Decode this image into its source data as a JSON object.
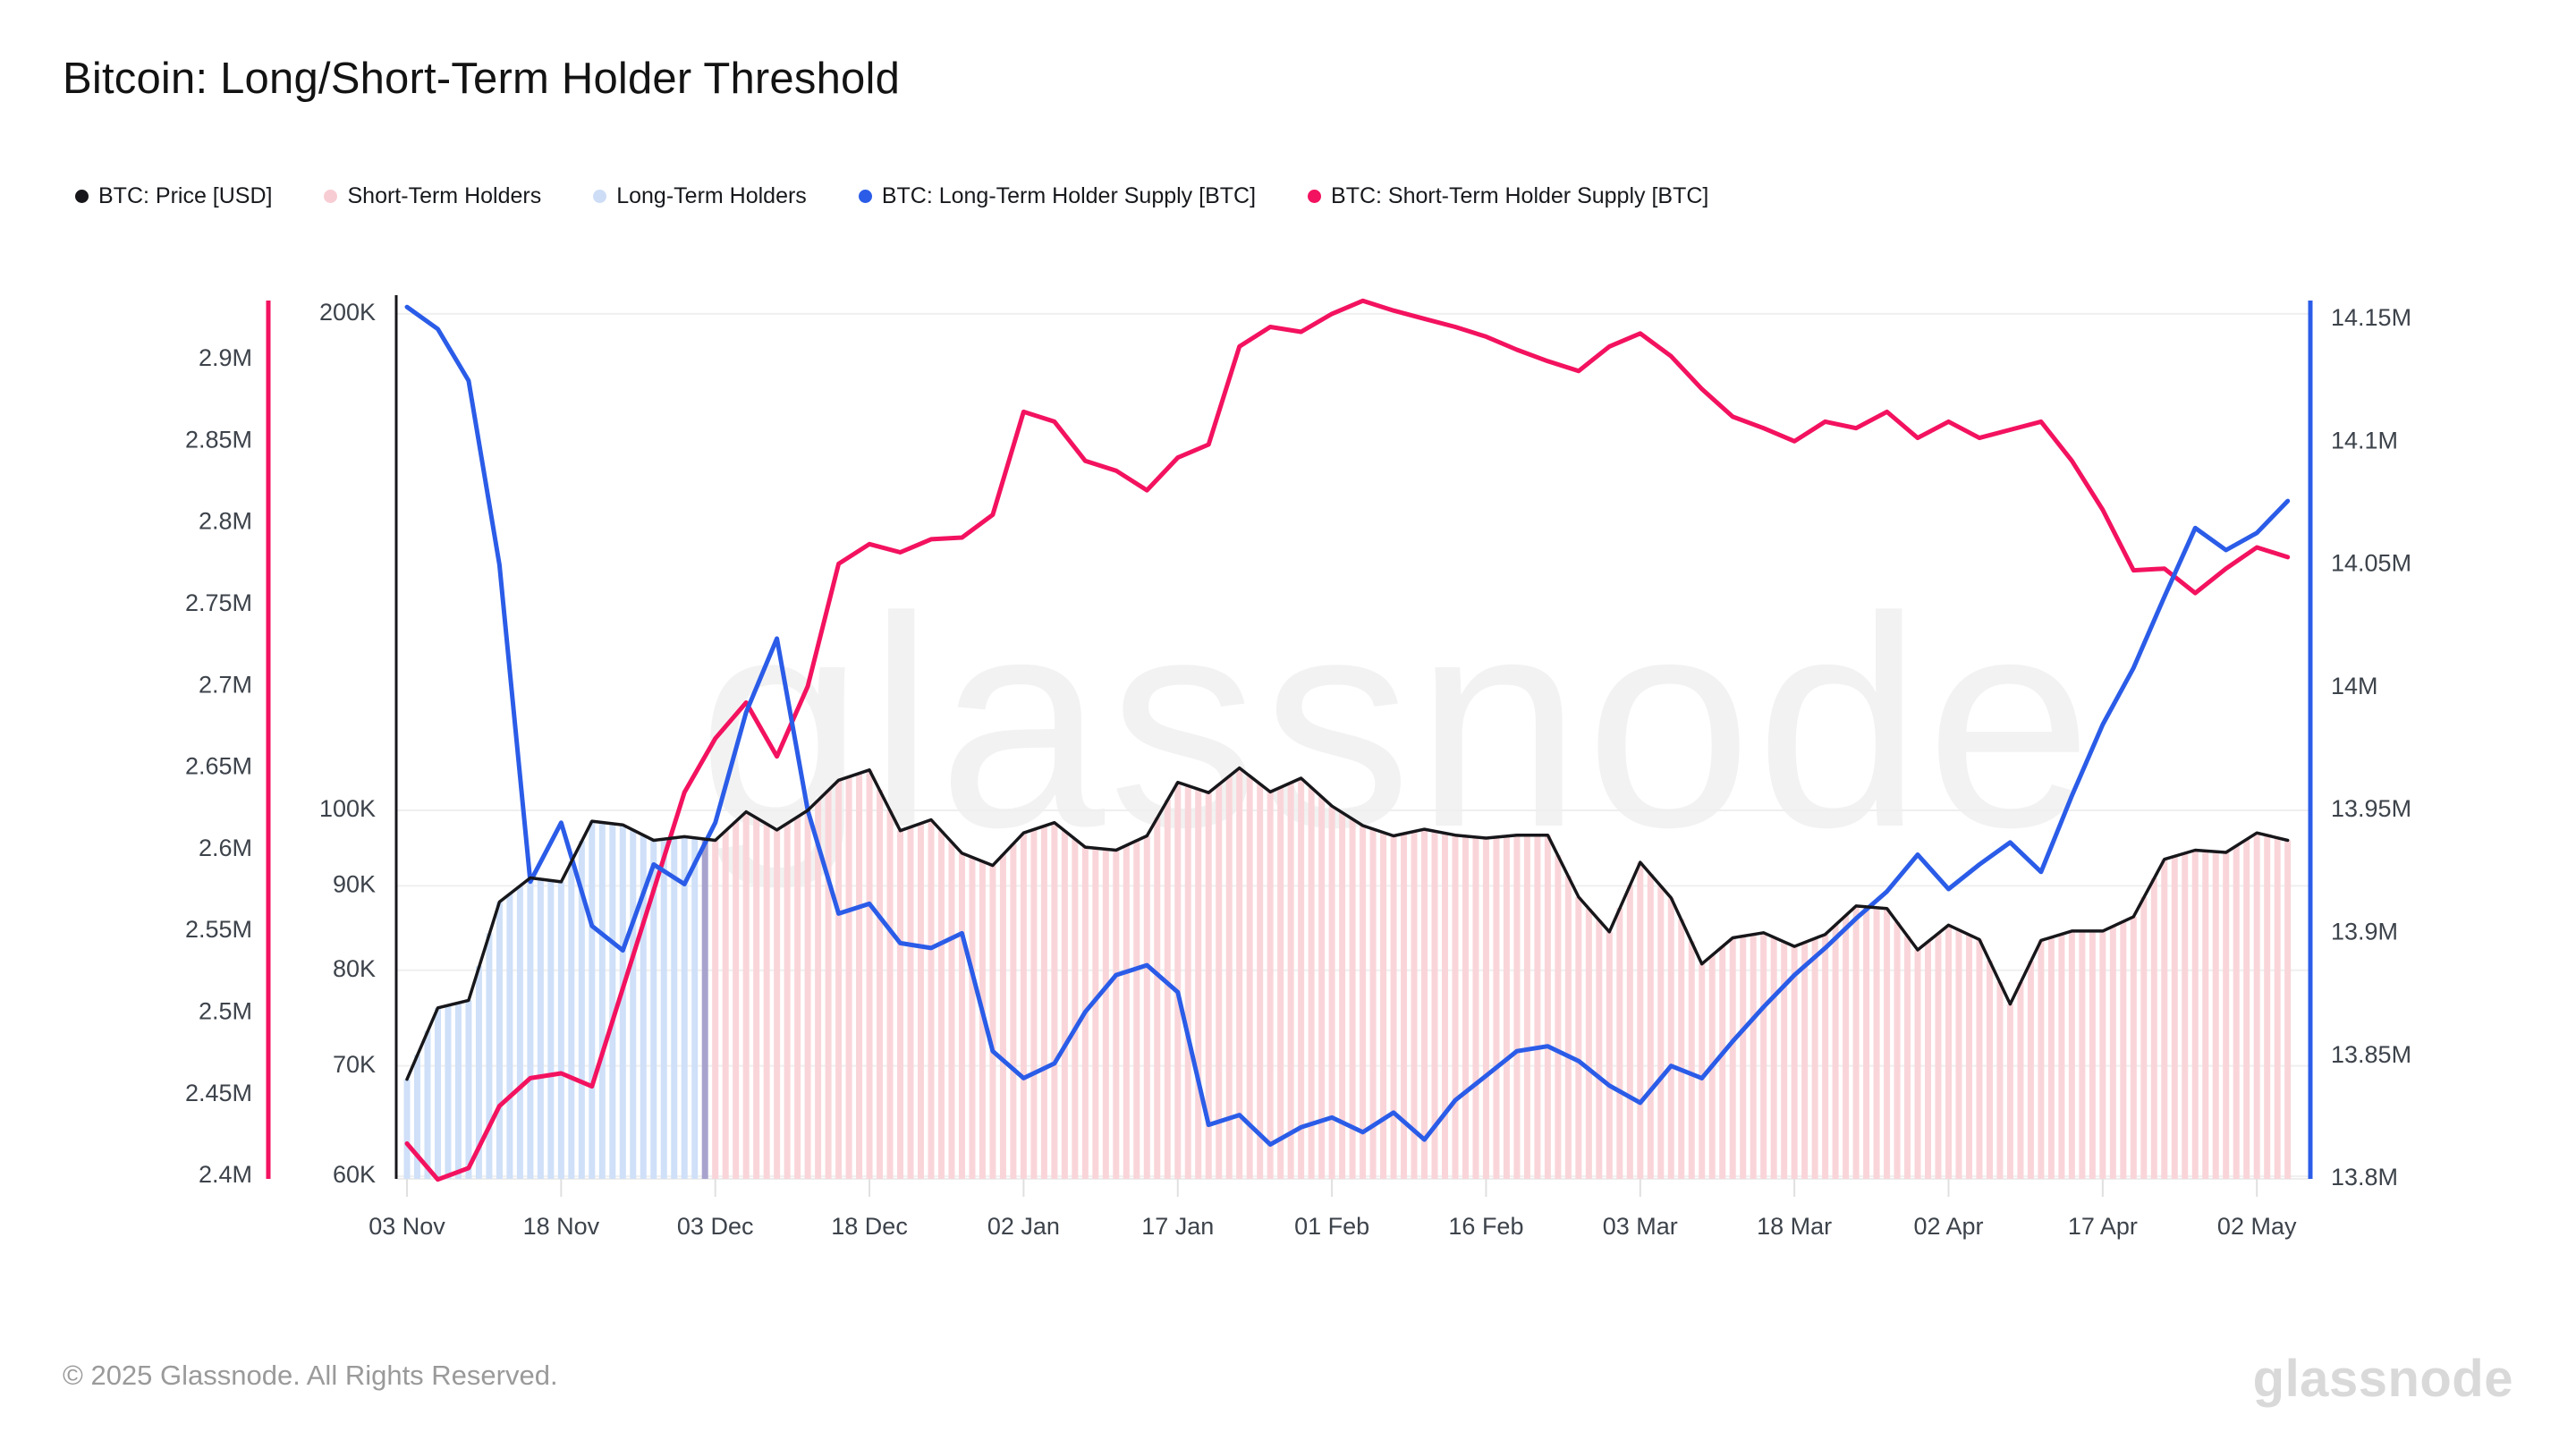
{
  "title": "Bitcoin: Long/Short-Term Holder Threshold",
  "watermark": "glassnode",
  "footer": {
    "copyright": "© 2025 Glassnode. All Rights Reserved.",
    "logo": "glassnode"
  },
  "legend": [
    {
      "label": "BTC: Price [USD]",
      "color": "#17171b"
    },
    {
      "label": "Short-Term Holders",
      "color": "#f8ccd3"
    },
    {
      "label": "Long-Term Holders",
      "color": "#cdddf6"
    },
    {
      "label": "BTC: Long-Term Holder Supply [BTC]",
      "color": "#2b5ce8"
    },
    {
      "label": "BTC: Short-Term Holder Supply [BTC]",
      "color": "#f3125f"
    }
  ],
  "chart_data": {
    "type": "line",
    "title": "Bitcoin: Long/Short-Term Holder Threshold",
    "x_tick_labels": [
      "03 Nov",
      "18 Nov",
      "03 Dec",
      "18 Dec",
      "02 Jan",
      "17 Jan",
      "01 Feb",
      "16 Feb",
      "03 Mar",
      "18 Mar",
      "02 Apr",
      "17 Apr",
      "02 May"
    ],
    "x_tick_days": [
      0,
      15,
      30,
      45,
      60,
      75,
      90,
      105,
      120,
      135,
      150,
      165,
      180
    ],
    "sample_dates": [
      "03 Nov",
      "06 Nov",
      "09 Nov",
      "12 Nov",
      "15 Nov",
      "18 Nov",
      "21 Nov",
      "24 Nov",
      "27 Nov",
      "30 Nov",
      "03 Dec",
      "06 Dec",
      "09 Dec",
      "12 Dec",
      "15 Dec",
      "18 Dec",
      "21 Dec",
      "24 Dec",
      "27 Dec",
      "30 Dec",
      "02 Jan",
      "05 Jan",
      "08 Jan",
      "11 Jan",
      "14 Jan",
      "17 Jan",
      "20 Jan",
      "23 Jan",
      "26 Jan",
      "29 Jan",
      "01 Feb",
      "04 Feb",
      "07 Feb",
      "10 Feb",
      "13 Feb",
      "16 Feb",
      "19 Feb",
      "22 Feb",
      "25 Feb",
      "28 Feb",
      "03 Mar",
      "06 Mar",
      "09 Mar",
      "12 Mar",
      "15 Mar",
      "18 Mar",
      "21 Mar",
      "24 Mar",
      "27 Mar",
      "30 Mar",
      "02 Apr",
      "05 Apr",
      "08 Apr",
      "11 Apr",
      "14 Apr",
      "17 Apr",
      "20 Apr",
      "23 Apr",
      "26 Apr",
      "29 Apr",
      "02 May",
      "05 May"
    ],
    "axes": {
      "price_usd": {
        "side": "inner-left",
        "scale": "log",
        "tick_labels": [
          "200K",
          "100K",
          "90K",
          "80K",
          "70K",
          "60K"
        ],
        "tick_values_k": [
          200,
          100,
          90,
          80,
          70,
          60
        ],
        "axis_color": "#17171b"
      },
      "sth_supply": {
        "side": "outer-left",
        "scale": "linear",
        "tick_labels": [
          "2.9M",
          "2.85M",
          "2.8M",
          "2.75M",
          "2.7M",
          "2.65M",
          "2.6M",
          "2.55M",
          "2.5M",
          "2.45M",
          "2.4M"
        ],
        "tick_values_m": [
          2.9,
          2.85,
          2.8,
          2.75,
          2.7,
          2.65,
          2.6,
          2.55,
          2.5,
          2.45,
          2.4
        ],
        "axis_color": "#f3125f"
      },
      "lth_supply": {
        "side": "right",
        "scale": "linear",
        "tick_labels": [
          "14.15M",
          "14.1M",
          "14.05M",
          "14M",
          "13.95M",
          "13.9M",
          "13.85M",
          "13.8M"
        ],
        "tick_values_m": [
          14.15,
          14.1,
          14.05,
          14.0,
          13.95,
          13.9,
          13.85,
          13.8
        ],
        "axis_color": "#2b5ce8"
      }
    },
    "series": [
      {
        "name": "BTC: Price [USD]",
        "axis": "price_usd",
        "color": "#17171b",
        "unit": "K USD",
        "values": [
          68.7,
          75.9,
          76.7,
          88.0,
          91.0,
          90.5,
          98.5,
          98.0,
          95.9,
          96.4,
          95.9,
          99.8,
          97.3,
          100.0,
          104.3,
          105.8,
          97.2,
          98.7,
          94.2,
          92.6,
          96.9,
          98.3,
          95.0,
          94.6,
          96.5,
          104.0,
          102.5,
          106.1,
          102.6,
          104.6,
          100.6,
          97.9,
          96.5,
          97.4,
          96.6,
          96.2,
          96.6,
          96.6,
          88.6,
          84.4,
          93.0,
          88.5,
          80.7,
          83.7,
          84.3,
          82.7,
          84.1,
          87.5,
          87.2,
          82.3,
          85.2,
          83.5,
          76.3,
          83.4,
          84.5,
          84.5,
          86.2,
          93.4,
          94.6,
          94.3,
          96.9,
          95.9
        ]
      },
      {
        "name": "BTC: Short-Term Holder Supply [BTC]",
        "axis": "sth_supply",
        "color": "#f3125f",
        "unit": "M BTC",
        "values": [
          2.42,
          2.398,
          2.405,
          2.443,
          2.46,
          2.463,
          2.455,
          2.515,
          2.575,
          2.635,
          2.668,
          2.69,
          2.657,
          2.7,
          2.775,
          2.787,
          2.782,
          2.79,
          2.791,
          2.805,
          2.868,
          2.862,
          2.838,
          2.832,
          2.82,
          2.84,
          2.848,
          2.908,
          2.92,
          2.917,
          2.928,
          2.936,
          2.93,
          2.925,
          2.92,
          2.914,
          2.906,
          2.899,
          2.893,
          2.908,
          2.916,
          2.902,
          2.882,
          2.865,
          2.858,
          2.85,
          2.862,
          2.858,
          2.868,
          2.852,
          2.862,
          2.852,
          2.857,
          2.862,
          2.838,
          2.808,
          2.771,
          2.772,
          2.757,
          2.772,
          2.785,
          2.779
        ]
      },
      {
        "name": "BTC: Long-Term Holder Supply [BTC]",
        "axis": "lth_supply",
        "color": "#2b5ce8",
        "unit": "M BTC",
        "values": [
          14.155,
          14.146,
          14.125,
          14.05,
          13.921,
          13.945,
          13.903,
          13.893,
          13.928,
          13.92,
          13.945,
          13.99,
          14.02,
          13.95,
          13.908,
          13.912,
          13.896,
          13.894,
          13.9,
          13.852,
          13.841,
          13.847,
          13.868,
          13.883,
          13.887,
          13.876,
          13.822,
          13.826,
          13.814,
          13.821,
          13.825,
          13.819,
          13.827,
          13.816,
          13.832,
          13.842,
          13.852,
          13.854,
          13.848,
          13.838,
          13.831,
          13.846,
          13.841,
          13.856,
          13.87,
          13.883,
          13.894,
          13.906,
          13.917,
          13.932,
          13.918,
          13.928,
          13.937,
          13.925,
          13.956,
          13.985,
          14.008,
          14.037,
          14.065,
          14.056,
          14.063,
          14.076
        ]
      }
    ],
    "regimes": [
      {
        "name": "Long-Term Holders",
        "bar_color": "#cfe0f8",
        "start": "03 Nov",
        "end": "01 Dec"
      },
      {
        "name": "transition",
        "bar_color": "#a8a3cd",
        "start": "02 Dec",
        "end": "02 Dec"
      },
      {
        "name": "Short-Term Holders",
        "bar_color": "#f9d5d9",
        "start": "03 Dec",
        "end": "05 May"
      }
    ],
    "grid": {
      "horizontal_price_gridlines": true,
      "color": "#efefef"
    },
    "legend_position": "top"
  }
}
